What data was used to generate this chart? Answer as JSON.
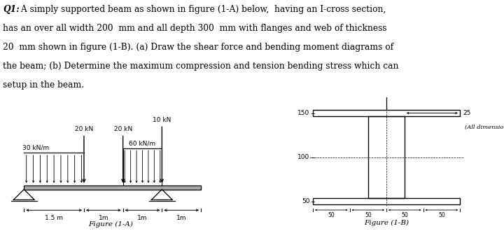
{
  "title_bold": "Q1:",
  "title_line1": " A simply supported beam as shown in figure (1-A) below,  having an I-cross section,",
  "title_line2": "has an over all width 200  mm and all depth 300  mm with flanges and web of thickness",
  "title_line3": "20  mm shown in figure (1-B). (a) Draw the shear force and bending moment diagrams of",
  "title_line4": "the beam; (b) Determine the maximum compression and tension bending stress which can",
  "title_line5": "setup in the beam.",
  "fig1A_label": "Figure (1-A)",
  "fig1B_label": "Figure (1-B)",
  "load1_label": "20 kN",
  "load2_label": "20 kN",
  "load3_label": "10 kN",
  "dist_load1_label": "30 kN/m",
  "dist_load2_label": "60 kN/m",
  "dim1": "1.5 m",
  "dim2": "1m",
  "dim3": "1m",
  "dim4": "1m",
  "dim_note": "(All dimensions in mm)",
  "bg_color": "#ffffff",
  "line_color": "#000000",
  "sec_label_150": "150",
  "sec_label_100": "100",
  "sec_label_50": "50",
  "sec_label_25": "25",
  "sec_bot_labels": [
    "50",
    "50",
    "50",
    "50"
  ]
}
